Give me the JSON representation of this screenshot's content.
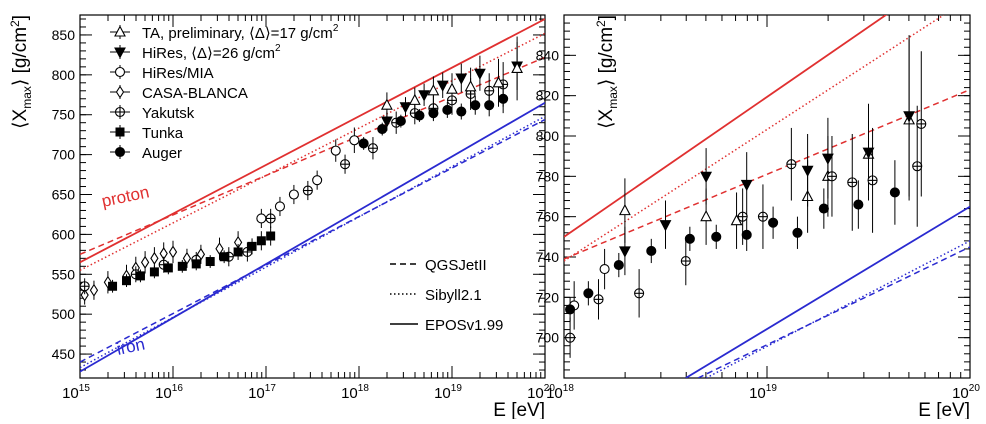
{
  "chart_data": [
    {
      "type": "scatter",
      "xlabel": "E [eV]",
      "ylabel": "⟨X",
      "ylabel_sub": "max",
      "ylabel_tail": "⟩ [g/cm",
      "ylabel_sup": "2",
      "ylabel_end": "]",
      "xscale": "log",
      "xlim_log10": [
        15,
        20
      ],
      "ylim": [
        420,
        875
      ],
      "xtick_base": "10",
      "xtick_exponents": [
        "15",
        "16",
        "17",
        "18",
        "19",
        "20"
      ],
      "yticks": [
        "450",
        "500",
        "550",
        "600",
        "650",
        "700",
        "750",
        "800",
        "850"
      ],
      "legend": [
        {
          "key": "ta",
          "label": "TA, preliminary, ⟨Δ⟩=17 g/cm",
          "sup": "2"
        },
        {
          "key": "hires",
          "label": "HiRes, ⟨Δ⟩=26 g/cm",
          "sup": "2"
        },
        {
          "key": "hiresmia",
          "label": "HiRes/MIA",
          "sup": ""
        },
        {
          "key": "casa",
          "label": "CASA-BLANCA",
          "sup": ""
        },
        {
          "key": "yakutsk",
          "label": "Yakutsk",
          "sup": ""
        },
        {
          "key": "tunka",
          "label": "Tunka",
          "sup": ""
        },
        {
          "key": "auger",
          "label": "Auger",
          "sup": ""
        }
      ],
      "model_legend": [
        {
          "style": "dashed",
          "label": "QGSJetII"
        },
        {
          "style": "dotted",
          "label": "Sibyll2.1"
        },
        {
          "style": "solid",
          "label": "EPOSv1.99"
        }
      ],
      "annotations": {
        "proton": "proton",
        "iron": "iron"
      },
      "colors": {
        "proton": "#e03030",
        "iron": "#2a2ad0",
        "data": "#000000"
      },
      "model_lines": [
        {
          "particle": "proton",
          "style": "solid",
          "x": [
            15,
            20
          ],
          "y": [
            565,
            870
          ]
        },
        {
          "particle": "proton",
          "style": "dashed",
          "x": [
            15,
            20
          ],
          "y": [
            575,
            822
          ]
        },
        {
          "particle": "proton",
          "style": "dotted",
          "x": [
            15,
            20
          ],
          "y": [
            555,
            852
          ]
        },
        {
          "particle": "iron",
          "style": "solid",
          "x": [
            15,
            20
          ],
          "y": [
            428,
            765
          ]
        },
        {
          "particle": "iron",
          "style": "dashed",
          "x": [
            15,
            20
          ],
          "y": [
            440,
            744
          ]
        },
        {
          "particle": "iron",
          "style": "dotted",
          "x": [
            15,
            20
          ],
          "y": [
            433,
            748
          ]
        }
      ],
      "series": [
        {
          "key": "casa",
          "marker": "diamond-open",
          "points": [
            [
              15.05,
              524,
              12
            ],
            [
              15.15,
              530,
              12
            ],
            [
              15.3,
              540,
              14
            ],
            [
              15.5,
              548,
              14
            ],
            [
              15.6,
              558,
              14
            ],
            [
              15.7,
              565,
              14
            ],
            [
              15.8,
              570,
              14
            ],
            [
              15.9,
              576,
              14
            ],
            [
              16.0,
              578,
              14
            ],
            [
              16.15,
              570,
              12
            ],
            [
              16.3,
              575,
              12
            ],
            [
              16.5,
              582,
              14
            ],
            [
              16.7,
              590,
              14
            ]
          ]
        },
        {
          "key": "yakutsk",
          "marker": "cross-open",
          "points": [
            [
              15.05,
              535,
              10
            ],
            [
              15.6,
              550,
              10
            ],
            [
              15.9,
              562,
              10
            ],
            [
              16.25,
              568,
              10
            ],
            [
              16.6,
              572,
              12
            ],
            [
              16.8,
              578,
              12
            ],
            [
              17.05,
              620,
              12
            ],
            [
              17.45,
              655,
              12
            ],
            [
              17.85,
              688,
              12
            ],
            [
              18.15,
              708,
              14
            ],
            [
              18.4,
              740,
              14
            ],
            [
              18.6,
              752,
              14
            ],
            [
              18.8,
              758,
              16
            ],
            [
              19.0,
              768,
              18
            ],
            [
              19.2,
              776,
              20
            ],
            [
              19.4,
              780,
              22
            ],
            [
              19.55,
              788,
              28
            ]
          ]
        },
        {
          "key": "hiresmia",
          "marker": "circle-open",
          "points": [
            [
              16.95,
              620,
              12
            ],
            [
              17.15,
              635,
              12
            ],
            [
              17.3,
              650,
              12
            ],
            [
              17.55,
              668,
              12
            ],
            [
              17.75,
              705,
              14
            ],
            [
              17.95,
              718,
              16
            ]
          ]
        },
        {
          "key": "tunka",
          "marker": "square-filled",
          "points": [
            [
              15.35,
              535,
              8
            ],
            [
              15.5,
              542,
              8
            ],
            [
              15.65,
              548,
              8
            ],
            [
              15.8,
              553,
              8
            ],
            [
              15.95,
              558,
              8
            ],
            [
              16.1,
              560,
              8
            ],
            [
              16.25,
              563,
              8
            ],
            [
              16.4,
              566,
              8
            ],
            [
              16.55,
              572,
              8
            ],
            [
              16.7,
              578,
              10
            ],
            [
              16.85,
              585,
              10
            ],
            [
              16.95,
              592,
              12
            ],
            [
              17.05,
              598,
              12
            ]
          ]
        },
        {
          "key": "hires",
          "marker": "triangle-down-filled",
          "points": [
            [
              18.3,
              742,
              12
            ],
            [
              18.5,
              760,
              12
            ],
            [
              18.7,
              775,
              14
            ],
            [
              18.9,
              787,
              16
            ],
            [
              19.1,
              796,
              18
            ],
            [
              19.3,
              802,
              22
            ],
            [
              19.7,
              811,
              30
            ]
          ]
        },
        {
          "key": "ta",
          "marker": "triangle-up-open",
          "points": [
            [
              18.3,
              762,
              16
            ],
            [
              18.6,
              768,
              16
            ],
            [
              18.8,
              780,
              18
            ],
            [
              19.0,
              782,
              20
            ],
            [
              19.2,
              785,
              24
            ],
            [
              19.5,
              790,
              30
            ],
            [
              19.7,
              808,
              40
            ]
          ]
        },
        {
          "key": "auger",
          "marker": "circle-filled",
          "points": [
            [
              18.05,
              714,
              8
            ],
            [
              18.25,
              732,
              8
            ],
            [
              18.45,
              742,
              8
            ],
            [
              18.65,
              749,
              8
            ],
            [
              18.8,
              752,
              8
            ],
            [
              18.95,
              756,
              10
            ],
            [
              19.1,
              754,
              10
            ],
            [
              19.25,
              762,
              12
            ],
            [
              19.4,
              762,
              14
            ],
            [
              19.55,
              770,
              18
            ]
          ]
        }
      ]
    },
    {
      "type": "scatter",
      "xlabel": "E [eV]",
      "ylabel": "⟨X",
      "ylabel_sub": "max",
      "ylabel_tail": "⟩ [g/cm",
      "ylabel_sup": "2",
      "ylabel_end": "]",
      "xscale": "log",
      "xlim_log10": [
        18,
        20
      ],
      "ylim": [
        680,
        860
      ],
      "xtick_base": "10",
      "xtick_exponents": [
        "18",
        "19",
        "20"
      ],
      "yticks": [
        "700",
        "720",
        "740",
        "760",
        "780",
        "800",
        "820",
        "840"
      ],
      "colors": {
        "proton": "#e03030",
        "iron": "#2a2ad0",
        "data": "#000000"
      },
      "model_lines": [
        {
          "particle": "proton",
          "style": "solid",
          "x": [
            18,
            19.6
          ],
          "y": [
            750,
            861
          ]
        },
        {
          "particle": "proton",
          "style": "dashed",
          "x": [
            18,
            20
          ],
          "y": [
            739,
            823
          ]
        },
        {
          "particle": "proton",
          "style": "dotted",
          "x": [
            18,
            19.87
          ],
          "y": [
            738,
            860
          ]
        },
        {
          "particle": "iron",
          "style": "solid",
          "x": [
            18.6,
            20
          ],
          "y": [
            680,
            765
          ]
        },
        {
          "particle": "iron",
          "style": "dashed",
          "x": [
            18.66,
            20
          ],
          "y": [
            680,
            745
          ]
        },
        {
          "particle": "iron",
          "style": "dotted",
          "x": [
            18.7,
            20
          ],
          "y": [
            680,
            748
          ]
        }
      ],
      "series": [
        {
          "key": "ta",
          "marker": "triangle-up-open",
          "points": [
            [
              18.3,
              763,
              16
            ],
            [
              18.7,
              760,
              14
            ],
            [
              18.85,
              758,
              14
            ],
            [
              19.2,
              770,
              18
            ],
            [
              19.3,
              780,
              20
            ],
            [
              19.5,
              791,
              22
            ],
            [
              19.7,
              808,
              40
            ]
          ]
        },
        {
          "key": "hires",
          "marker": "triangle-down-filled",
          "points": [
            [
              18.3,
              743,
              12
            ],
            [
              18.5,
              756,
              12
            ],
            [
              18.7,
              780,
              14
            ],
            [
              18.9,
              776,
              16
            ],
            [
              19.2,
              783,
              18
            ],
            [
              19.3,
              789,
              20
            ],
            [
              19.5,
              792,
              24
            ],
            [
              19.7,
              810,
              40
            ]
          ]
        },
        {
          "key": "hiresmia",
          "marker": "circle-open",
          "points": [
            [
              18.05,
              716,
              12
            ],
            [
              18.2,
              734,
              10
            ]
          ]
        },
        {
          "key": "yakutsk",
          "marker": "cross-open",
          "points": [
            [
              18.03,
              700,
              10
            ],
            [
              18.17,
              719,
              10
            ],
            [
              18.37,
              722,
              12
            ],
            [
              18.6,
              738,
              12
            ],
            [
              18.88,
              760,
              14
            ],
            [
              18.98,
              760,
              16
            ],
            [
              19.12,
              786,
              18
            ],
            [
              19.32,
              780,
              20
            ],
            [
              19.42,
              777,
              24
            ],
            [
              19.52,
              778,
              26
            ],
            [
              19.74,
              785,
              30
            ],
            [
              19.76,
              806,
              36
            ]
          ]
        },
        {
          "key": "auger",
          "marker": "circle-filled",
          "points": [
            [
              18.03,
              714,
              6
            ],
            [
              18.12,
              722,
              6
            ],
            [
              18.27,
              736,
              6
            ],
            [
              18.43,
              743,
              6
            ],
            [
              18.62,
              749,
              6
            ],
            [
              18.75,
              750,
              6
            ],
            [
              18.9,
              751,
              8
            ],
            [
              19.03,
              757,
              8
            ],
            [
              19.15,
              752,
              8
            ],
            [
              19.28,
              764,
              10
            ],
            [
              19.45,
              766,
              12
            ],
            [
              19.63,
              772,
              16
            ]
          ]
        }
      ]
    }
  ]
}
